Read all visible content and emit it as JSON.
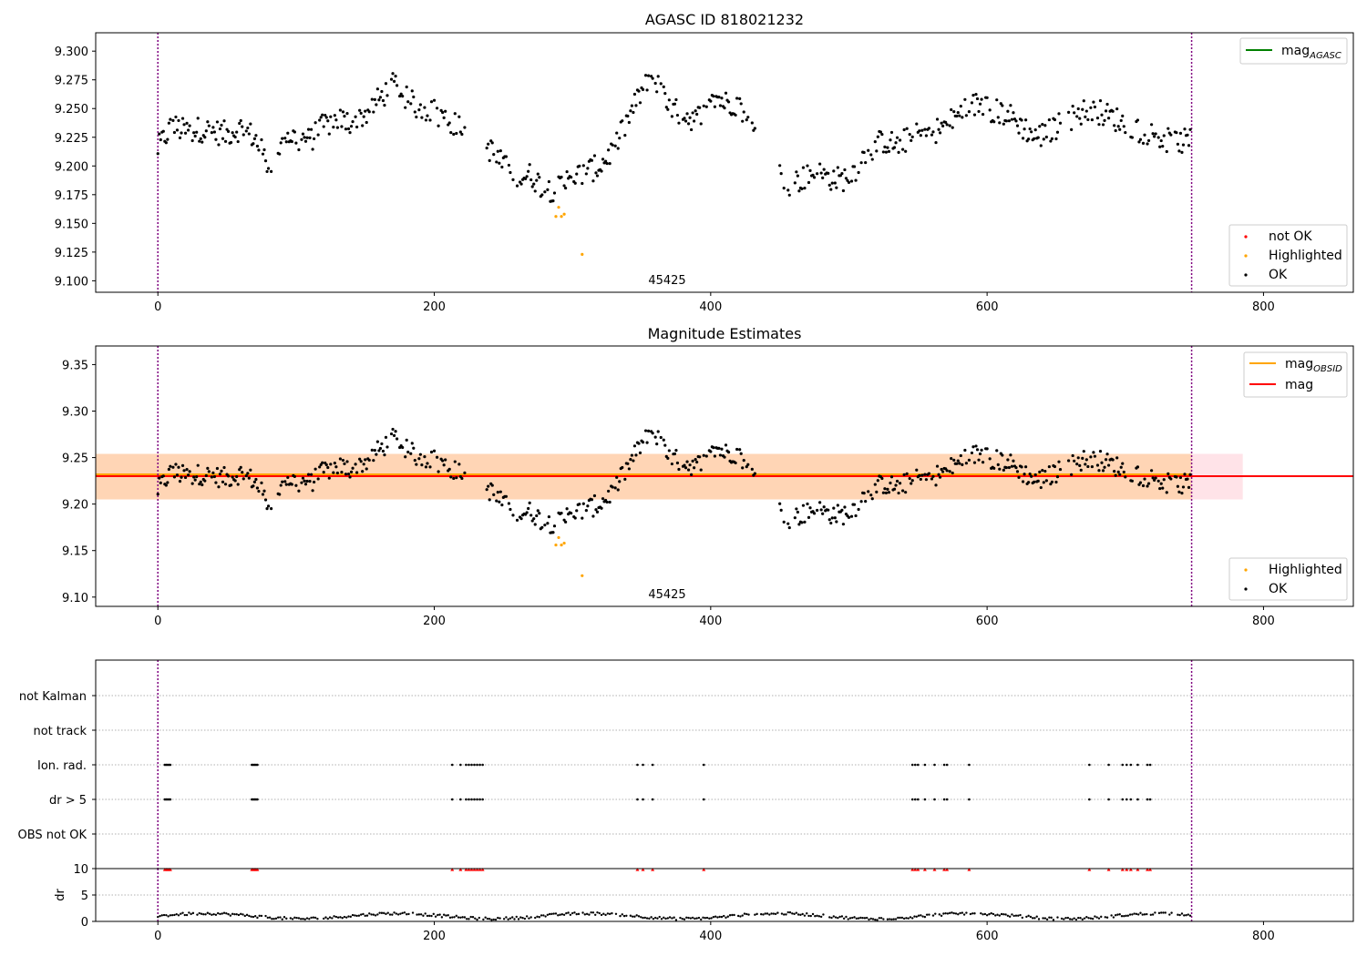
{
  "chart_data": [
    {
      "type": "scatter",
      "title": "AGASC ID 818021232",
      "xlim": [
        -45,
        865
      ],
      "ylim": [
        9.09,
        9.316
      ],
      "x_ticks": [
        "0",
        "200",
        "400",
        "600",
        "800"
      ],
      "y_ticks": [
        "9.100",
        "9.125",
        "9.150",
        "9.175",
        "9.200",
        "9.225",
        "9.250",
        "9.275",
        "9.300"
      ],
      "vertical_lines_x": [
        0,
        748
      ],
      "annotation": "45425",
      "annotation_x": 375,
      "legend_upper": [
        {
          "label": "mag",
          "sub": "AGASC",
          "color": "#008000"
        }
      ],
      "legend_lower": [
        {
          "label": "not OK",
          "color": "#ff0000"
        },
        {
          "label": "Highlighted",
          "color": "#ffa500"
        },
        {
          "label": "OK",
          "color": "#000000"
        }
      ],
      "highlighted_points": {
        "x": [
          288,
          290,
          292,
          294,
          307
        ],
        "y": [
          9.156,
          9.164,
          9.156,
          9.158,
          9.123
        ]
      },
      "ok_series_outline": {
        "x": [
          0,
          10,
          20,
          30,
          40,
          50,
          60,
          70,
          78,
          85,
          90,
          100,
          110,
          120,
          130,
          140,
          150,
          160,
          170,
          180,
          190,
          200,
          210,
          220,
          240,
          250,
          260,
          270,
          280,
          290,
          300,
          310,
          320,
          330,
          340,
          350,
          358,
          370,
          380,
          390,
          400,
          410,
          420,
          430,
          440,
          450,
          455,
          465,
          475,
          485,
          495,
          505,
          515,
          525,
          535,
          545,
          555,
          565,
          575,
          585,
          595,
          605,
          615,
          625,
          635,
          645,
          655,
          665,
          675,
          685,
          695,
          705,
          715,
          725,
          735,
          748
        ],
        "y": [
          9.215,
          9.235,
          9.23,
          9.232,
          9.23,
          9.228,
          9.233,
          9.225,
          9.205,
          9.192,
          9.228,
          9.225,
          9.222,
          9.235,
          9.24,
          9.238,
          9.245,
          9.258,
          9.27,
          9.258,
          9.25,
          9.248,
          9.24,
          9.232,
          9.215,
          9.2,
          9.19,
          9.192,
          9.18,
          9.18,
          9.19,
          9.195,
          9.2,
          9.215,
          9.24,
          9.265,
          9.278,
          9.25,
          9.245,
          9.24,
          9.265,
          9.255,
          9.255,
          9.23,
          9.225,
          9.195,
          9.185,
          9.188,
          9.195,
          9.19,
          9.188,
          9.198,
          9.215,
          9.222,
          9.218,
          9.225,
          9.228,
          9.232,
          9.24,
          9.25,
          9.255,
          9.248,
          9.245,
          9.235,
          9.225,
          9.23,
          9.238,
          9.245,
          9.25,
          9.245,
          9.24,
          9.232,
          9.23,
          9.225,
          9.22,
          9.222
        ]
      }
    },
    {
      "type": "scatter",
      "title": "Magnitude Estimates",
      "xlim": [
        -45,
        865
      ],
      "ylim": [
        9.09,
        9.37
      ],
      "x_ticks": [
        "0",
        "200",
        "400",
        "600",
        "800"
      ],
      "y_ticks": [
        "9.10",
        "9.15",
        "9.20",
        "9.25",
        "9.30",
        "9.35"
      ],
      "vertical_lines_x": [
        0,
        748
      ],
      "annotation": "45425",
      "annotation_x": 375,
      "mag_band": {
        "y_low": 9.205,
        "y_high": 9.254,
        "x_end": 785,
        "color": "#ffc0cb"
      },
      "mag_obsid_band": {
        "y_low": 9.205,
        "y_high": 9.254,
        "x_end": 748,
        "color": "#ffa500"
      },
      "mag_line_y": 9.23,
      "mag_obsid_line_y": 9.232,
      "legend_upper": [
        {
          "label": "mag",
          "sub": "OBSID",
          "color": "#ffa500"
        },
        {
          "label": "mag",
          "sub": "",
          "color": "#ff0000"
        }
      ],
      "legend_lower": [
        {
          "label": "Highlighted",
          "color": "#ffa500"
        },
        {
          "label": "OK",
          "color": "#000000"
        }
      ]
    },
    {
      "type": "scatter",
      "title": "",
      "xlim": [
        -45,
        865
      ],
      "x_ticks": [
        "0",
        "200",
        "400",
        "600",
        "800"
      ],
      "flag_categories": [
        "not Kalman",
        "not track",
        "Ion. rad.",
        "dr > 5",
        "OBS not OK"
      ],
      "flag_points": {
        "Ion. rad.": [
          5,
          6,
          7,
          8,
          9,
          68,
          69,
          70,
          71,
          72,
          213,
          219,
          223,
          225,
          227,
          229,
          231,
          233,
          235,
          347,
          351,
          358,
          395,
          546,
          548,
          550,
          555,
          562,
          569,
          571,
          587,
          674,
          688,
          698,
          701,
          704,
          709,
          716,
          718
        ],
        "dr > 5": [
          5,
          6,
          7,
          8,
          9,
          68,
          69,
          70,
          71,
          72,
          213,
          219,
          223,
          225,
          227,
          229,
          231,
          233,
          235,
          347,
          351,
          358,
          395,
          546,
          548,
          550,
          555,
          562,
          569,
          571,
          587,
          674,
          688,
          698,
          701,
          704,
          709,
          716,
          718
        ]
      },
      "vertical_lines_x": [
        0,
        748
      ]
    },
    {
      "type": "scatter",
      "title": "",
      "xlim": [
        -45,
        865
      ],
      "ylim": [
        0,
        10
      ],
      "ylabel": "dr",
      "x_ticks": [
        "0",
        "200",
        "400",
        "600",
        "800"
      ],
      "y_ticks": [
        "0",
        "5",
        "10"
      ],
      "vertical_lines_x": [
        0,
        748
      ],
      "red_markers_y": 9.8
    }
  ]
}
